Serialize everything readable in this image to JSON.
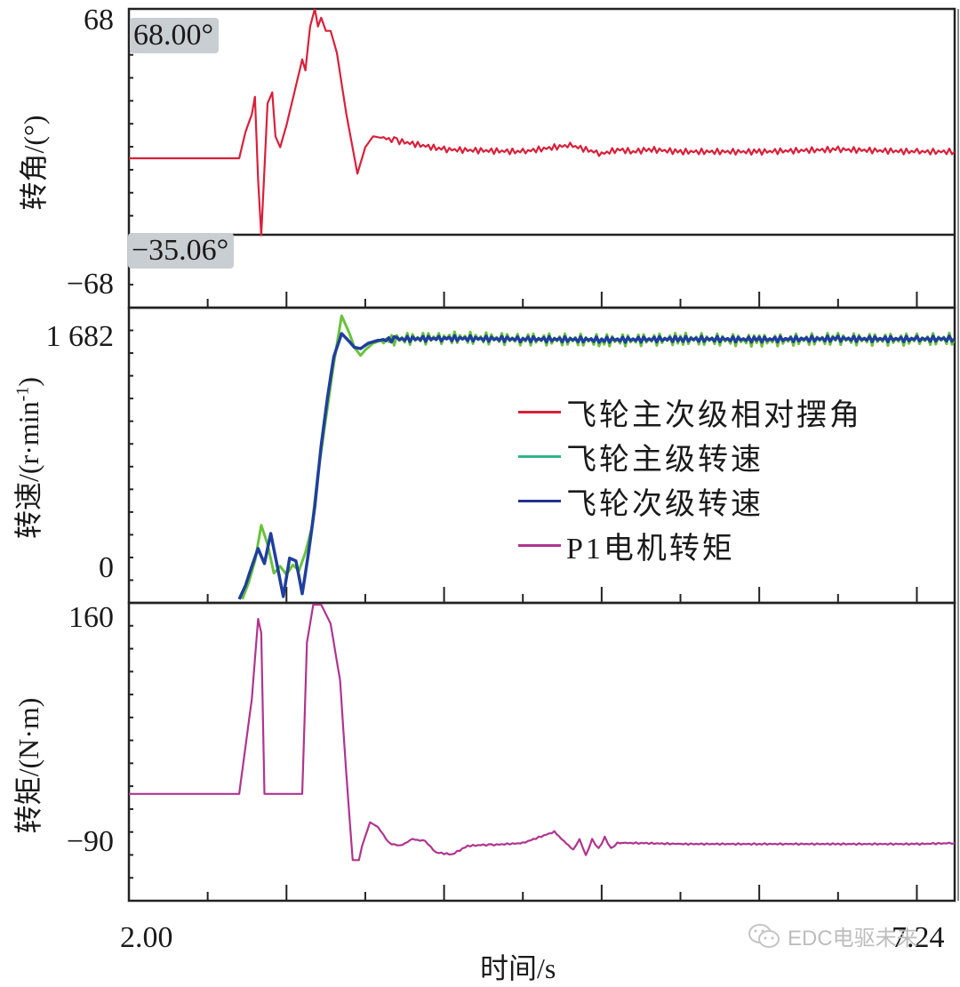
{
  "chart_data": {
    "type": "line",
    "layout": "three vertically stacked panels sharing a time axis",
    "xlabel": "时间/s",
    "xlim": [
      2.0,
      7.24
    ],
    "x_tick_labels": [
      "2.00",
      "7.24"
    ],
    "x_minor_tick_interval_s": 0.5,
    "grid": false,
    "legend": {
      "position": "inside middle panel, right of center",
      "entries": [
        {
          "label": "飞轮主次级相对摆角",
          "color": "#d9203a"
        },
        {
          "label": "飞轮主级转速",
          "color": "#2fb58c"
        },
        {
          "label": "飞轮次级转速",
          "color": "#24328f"
        },
        {
          "label": "P1电机转矩",
          "color": "#b0348f"
        }
      ]
    },
    "panels": [
      {
        "name": "angle",
        "ylabel": "转角/(°)",
        "ylim": [
          -68,
          68
        ],
        "y_tick_labels": [
          "68",
          "-68"
        ],
        "annotations": [
          {
            "text": "68.00°",
            "type": "max-marker",
            "y": 68.0
          },
          {
            "text": "-35.06°",
            "type": "min-marker",
            "y": -35.06
          }
        ],
        "series": [
          {
            "name": "飞轮主次级相对摆角",
            "color": "#d9203a",
            "x": [
              2.0,
              2.7,
              2.74,
              2.78,
              2.8,
              2.82,
              2.84,
              2.86,
              2.88,
              2.91,
              2.93,
              2.96,
              3.0,
              3.05,
              3.1,
              3.12,
              3.15,
              3.18,
              3.2,
              3.22,
              3.25,
              3.28,
              3.32,
              3.38,
              3.45,
              3.5,
              3.55,
              3.7,
              4.0,
              4.5,
              4.8,
              5.0,
              5.1,
              5.2,
              5.3,
              5.5,
              6.0,
              6.5,
              7.0,
              7.24
            ],
            "values": [
              0,
              0,
              12,
              20,
              28,
              -10,
              -35.06,
              -5,
              25,
              30,
              10,
              5,
              15,
              30,
              45,
              40,
              60,
              68,
              60,
              64,
              58,
              58,
              48,
              20,
              -7,
              5,
              10,
              8,
              4,
              3,
              6,
              2,
              4,
              3,
              4,
              3,
              3,
              4,
              3,
              3
            ]
          }
        ]
      },
      {
        "name": "speed",
        "ylabel": "转速/(r·min⁻¹)",
        "ylim": [
          -220,
          1860
        ],
        "y_tick_labels": [
          "1 682",
          "0"
        ],
        "series": [
          {
            "name": "飞轮主级转速",
            "color": "#6ac23c",
            "x": [
              2.72,
              2.76,
              2.8,
              2.84,
              2.88,
              2.92,
              2.96,
              3.0,
              3.04,
              3.08,
              3.12,
              3.16,
              3.2,
              3.25,
              3.3,
              3.35,
              3.4,
              3.43,
              3.47,
              3.5,
              3.55,
              3.6,
              3.7,
              4.0,
              4.5,
              5.0,
              5.5,
              6.0,
              6.5,
              7.0,
              7.24
            ],
            "values": [
              -220,
              -100,
              60,
              320,
              180,
              -30,
              20,
              -40,
              30,
              -10,
              120,
              300,
              700,
              1100,
              1500,
              1850,
              1720,
              1620,
              1560,
              1600,
              1650,
              1670,
              1680,
              1690,
              1680,
              1670,
              1680,
              1670,
              1680,
              1675,
              1680
            ]
          },
          {
            "name": "飞轮次级转速",
            "color": "#1f3f9c",
            "x": [
              2.7,
              2.74,
              2.78,
              2.82,
              2.86,
              2.9,
              2.94,
              2.98,
              3.02,
              3.06,
              3.1,
              3.14,
              3.18,
              3.22,
              3.26,
              3.3,
              3.35,
              3.4,
              3.43,
              3.47,
              3.52,
              3.58,
              3.7,
              4.0,
              4.5,
              5.0,
              5.5,
              6.0,
              6.5,
              7.0,
              7.24
            ],
            "values": [
              -220,
              -120,
              20,
              150,
              40,
              260,
              30,
              -200,
              80,
              60,
              -180,
              120,
              460,
              900,
              1250,
              1550,
              1720,
              1660,
              1620,
              1610,
              1650,
              1670,
              1680,
              1685,
              1680,
              1675,
              1680,
              1678,
              1682,
              1680,
              1682
            ]
          }
        ]
      },
      {
        "name": "torque",
        "ylabel": "转矩/(N·m)",
        "ylim": [
          -118,
          160
        ],
        "y_tick_labels": [
          "160",
          "-90"
        ],
        "series": [
          {
            "name": "P1电机转矩",
            "color": "#b0348f",
            "x": [
              2.0,
              2.7,
              2.78,
              2.82,
              2.84,
              2.86,
              2.89,
              2.92,
              3.1,
              3.13,
              3.17,
              3.22,
              3.28,
              3.34,
              3.38,
              3.42,
              3.46,
              3.48,
              3.53,
              3.58,
              3.65,
              3.72,
              3.8,
              3.88,
              3.95,
              4.05,
              4.15,
              4.25,
              4.3,
              4.5,
              4.7,
              4.76,
              4.82,
              4.86,
              4.9,
              4.94,
              4.98,
              5.02,
              5.06,
              5.1,
              5.15,
              5.25,
              5.5,
              6.0,
              6.5,
              7.0,
              7.24
            ],
            "values": [
              -40,
              -40,
              60,
              145,
              130,
              -40,
              -40,
              -40,
              -40,
              120,
              160,
              160,
              140,
              80,
              -20,
              -110,
              -110,
              -95,
              -70,
              -75,
              -92,
              -95,
              -88,
              -90,
              -102,
              -104,
              -95,
              -94,
              -94,
              -92,
              -80,
              -90,
              -99,
              -88,
              -105,
              -88,
              -98,
              -86,
              -98,
              -92,
              -92,
              -92,
              -93,
              -93,
              -93,
              -93,
              -92
            ]
          }
        ]
      }
    ]
  },
  "labels": {
    "angle_ylabel": "转角/(°)",
    "speed_ylabel": "转速/(r·min",
    "speed_ylabel_sup": "-1",
    "speed_ylabel_close": ")",
    "torque_ylabel": "转矩/(N·m)",
    "angle_max_tick": "68",
    "angle_min_tick": "−68",
    "angle_max_marker": "68.00°",
    "angle_min_marker": "−35.06°",
    "speed_max_tick": "1 682",
    "speed_zero_tick": "0",
    "torque_max_tick": "160",
    "torque_min_tick": "−90",
    "x_start": "2.00",
    "x_end": "7.24",
    "xlabel": "时间/s"
  },
  "legend": [
    {
      "label": "飞轮主次级相对摆角",
      "color": "#d9203a"
    },
    {
      "label": "飞轮主级转速",
      "color": "#2fb58c"
    },
    {
      "label": "飞轮次级转速",
      "color": "#24328f"
    },
    {
      "label": "P1电机转矩",
      "color": "#b0348f"
    }
  ],
  "watermark": {
    "icon": "wechat-icon",
    "text": "EDC电驱未来"
  }
}
